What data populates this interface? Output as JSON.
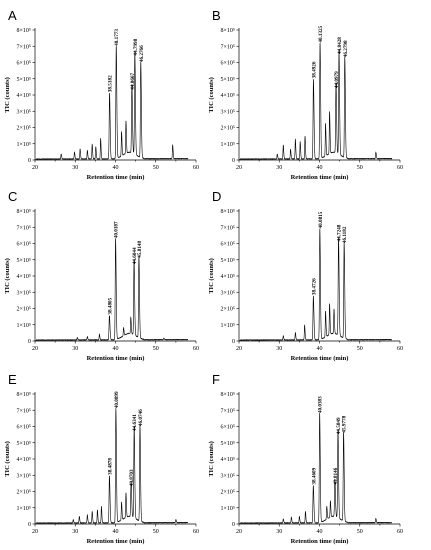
{
  "chart_data": [
    {
      "type": "line",
      "panel": "A",
      "xlabel": "Retention time (min)",
      "ylabel": "TIC (counts)",
      "xlim": [
        20,
        60
      ],
      "ylim": [
        0,
        8000000
      ],
      "xticks": [
        "20",
        "30",
        "40",
        "50",
        "60"
      ],
      "yticks": [
        "0",
        "1×10⁵",
        "2×10⁵",
        "3×10⁵",
        "4×10⁵",
        "5×10⁵",
        "6×10⁵",
        "7×10⁵",
        "8×10⁵"
      ],
      "peaks": [
        {
          "rt": 38.5182,
          "label": "38.5182",
          "height": 4050000
        },
        {
          "rt": 40.1773,
          "label": "40.1773",
          "height": 6900000
        },
        {
          "rt": 44.0667,
          "label": "44.0667",
          "height": 4200000
        },
        {
          "rt": 44.7998,
          "label": "44.7998",
          "height": 6300000
        },
        {
          "rt": 46.2766,
          "label": "46.2766",
          "height": 5900000
        }
      ],
      "minor_peaks": [
        [
          26.5,
          300000
        ],
        [
          29.8,
          420000
        ],
        [
          31.2,
          600000
        ],
        [
          33.0,
          520000
        ],
        [
          34.2,
          900000
        ],
        [
          35.1,
          750000
        ],
        [
          36.3,
          1250000
        ],
        [
          41.5,
          1500000
        ],
        [
          42.6,
          2000000
        ],
        [
          54.2,
          850000
        ]
      ]
    },
    {
      "type": "line",
      "panel": "B",
      "xlabel": "Retention time (min)",
      "ylabel": "TIC (counts)",
      "xlim": [
        20,
        60
      ],
      "ylim": [
        0,
        8000000
      ],
      "xticks": [
        "20",
        "30",
        "40",
        "50",
        "60"
      ],
      "yticks": [
        "0",
        "1×10⁵",
        "2×10⁵",
        "3×10⁵",
        "4×10⁵",
        "5×10⁵",
        "6×10⁵",
        "7×10⁵",
        "8×10⁵"
      ],
      "peaks": [
        {
          "rt": 38.4926,
          "label": "38.4926",
          "height": 4900000
        },
        {
          "rt": 40.1325,
          "label": "40.1325",
          "height": 7100000
        },
        {
          "rt": 44.0979,
          "label": "44.0979",
          "height": 4300000
        },
        {
          "rt": 44.8428,
          "label": "44.8428",
          "height": 6400000
        },
        {
          "rt": 46.2798,
          "label": "46.2798",
          "height": 6200000
        }
      ],
      "minor_peaks": [
        [
          29.5,
          300000
        ],
        [
          31.0,
          850000
        ],
        [
          32.8,
          600000
        ],
        [
          34.0,
          1200000
        ],
        [
          35.2,
          1050000
        ],
        [
          36.4,
          1400000
        ],
        [
          41.5,
          2000000
        ],
        [
          42.5,
          2600000
        ],
        [
          54.0,
          400000
        ]
      ]
    },
    {
      "type": "line",
      "panel": "C",
      "xlabel": "Retention time (min)",
      "ylabel": "TIC (counts)",
      "xlim": [
        20,
        60
      ],
      "ylim": [
        0,
        8000000
      ],
      "xticks": [
        "20",
        "30",
        "40",
        "50",
        "60"
      ],
      "yticks": [
        "0",
        "1×10⁵",
        "2×10⁵",
        "3×10⁵",
        "4×10⁵",
        "5×10⁵",
        "6×10⁵",
        "7×10⁵",
        "8×10⁵"
      ],
      "peaks": [
        {
          "rt": 38.4805,
          "label": "38.4805",
          "height": 1500000
        },
        {
          "rt": 40.0187,
          "label": "40.0187",
          "height": 6200000
        },
        {
          "rt": 44.6044,
          "label": "44.6044",
          "height": 4600000
        },
        {
          "rt": 45.8148,
          "label": "45.8148",
          "height": 5000000
        }
      ],
      "minor_peaks": [
        [
          30.5,
          150000
        ],
        [
          33.0,
          200000
        ],
        [
          36.0,
          350000
        ],
        [
          42.0,
          500000
        ],
        [
          43.8,
          1000000
        ],
        [
          52.0,
          100000
        ]
      ]
    },
    {
      "type": "line",
      "panel": "D",
      "xlabel": "Retention time (min)",
      "ylabel": "TIC (counts)",
      "xlim": [
        20,
        60
      ],
      "ylim": [
        0,
        8000000
      ],
      "xticks": [
        "20",
        "30",
        "40",
        "50",
        "60"
      ],
      "yticks": [
        "0",
        "1×10⁵",
        "2×10⁵",
        "3×10⁵",
        "4×10⁵",
        "5×10⁵",
        "6×10⁵",
        "7×10⁵",
        "8×10⁵"
      ],
      "peaks": [
        {
          "rt": 38.4726,
          "label": "38.4726",
          "height": 2700000
        },
        {
          "rt": 40.0815,
          "label": "40.0815",
          "height": 6800000
        },
        {
          "rt": 44.7248,
          "label": "44.7248",
          "height": 6000000
        },
        {
          "rt": 46.1182,
          "label": "46.1182",
          "height": 5900000
        }
      ],
      "minor_peaks": [
        [
          31.0,
          250000
        ],
        [
          34.0,
          450000
        ],
        [
          36.3,
          900000
        ],
        [
          41.5,
          1600000
        ],
        [
          42.5,
          1900000
        ],
        [
          43.6,
          1500000
        ]
      ]
    },
    {
      "type": "line",
      "panel": "E",
      "xlabel": "Retention time (min)",
      "ylabel": "TIC (counts)",
      "xlim": [
        20,
        60
      ],
      "ylim": [
        0,
        8000000
      ],
      "xticks": [
        "20",
        "30",
        "40",
        "50",
        "60"
      ],
      "yticks": [
        "0",
        "1×10⁵",
        "2×10⁵",
        "3×10⁵",
        "4×10⁵",
        "5×10⁵",
        "6×10⁵",
        "7×10⁵",
        "8×10⁵"
      ],
      "peaks": [
        {
          "rt": 38.4878,
          "label": "38.4878",
          "height": 2900000
        },
        {
          "rt": 40.0899,
          "label": "40.0899",
          "height": 7000000
        },
        {
          "rt": 43.8703,
          "label": "43.8703",
          "height": 2200000
        },
        {
          "rt": 44.6341,
          "label": "44.6341",
          "height": 5600000
        },
        {
          "rt": 46.0746,
          "label": "46.0746",
          "height": 5900000
        }
      ],
      "minor_peaks": [
        [
          29.5,
          200000
        ],
        [
          31.0,
          400000
        ],
        [
          33.0,
          500000
        ],
        [
          34.2,
          700000
        ],
        [
          35.5,
          800000
        ],
        [
          36.5,
          1000000
        ],
        [
          41.5,
          1100000
        ],
        [
          42.6,
          1500000
        ],
        [
          55.0,
          200000
        ]
      ]
    },
    {
      "type": "line",
      "panel": "F",
      "xlabel": "Retention time (min)",
      "ylabel": "TIC (counts)",
      "xlim": [
        20,
        60
      ],
      "ylim": [
        0,
        8000000
      ],
      "xticks": [
        "20",
        "30",
        "40",
        "50",
        "60"
      ],
      "yticks": [
        "0",
        "1×10⁵",
        "2×10⁵",
        "3×10⁵",
        "4×10⁵",
        "5×10⁵",
        "6×10⁵",
        "7×10⁵",
        "8×10⁵"
      ],
      "peaks": [
        {
          "rt": 38.4609,
          "label": "38.4609",
          "height": 2300000
        },
        {
          "rt": 40.0383,
          "label": "40.0383",
          "height": 6700000
        },
        {
          "rt": 43.8146,
          "label": "43.8146",
          "height": 2300000
        },
        {
          "rt": 44.5849,
          "label": "44.5849",
          "height": 5400000
        },
        {
          "rt": 45.9778,
          "label": "45.9778",
          "height": 5500000
        }
      ],
      "minor_peaks": [
        [
          31.0,
          250000
        ],
        [
          33.0,
          350000
        ],
        [
          35.0,
          400000
        ],
        [
          36.5,
          700000
        ],
        [
          41.8,
          800000
        ],
        [
          42.7,
          1000000
        ],
        [
          54.0,
          250000
        ]
      ]
    }
  ]
}
